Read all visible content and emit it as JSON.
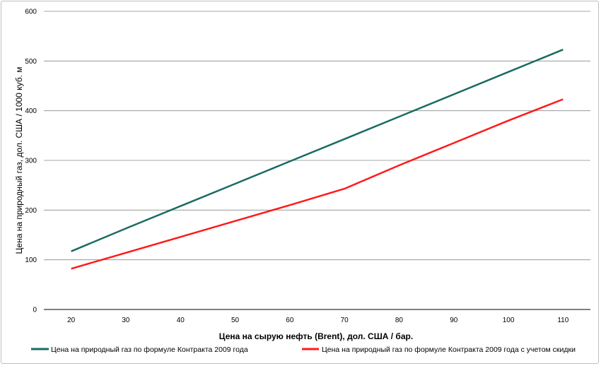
{
  "chart_data": {
    "type": "line",
    "xlabel": "Цена на сырую нефть (Brent), дол. США / бар.",
    "ylabel": "Цена на природный газ, дол. США / 1000 куб. м",
    "x": [
      20,
      30,
      40,
      50,
      60,
      70,
      80,
      90,
      100,
      110
    ],
    "xlim": [
      15,
      115
    ],
    "ylim": [
      0,
      600
    ],
    "yticks": [
      0,
      100,
      200,
      300,
      400,
      500,
      600
    ],
    "grid": true,
    "legend_position": "bottom",
    "series": [
      {
        "name": "Цена на природный газ по формуле Контракта 2009 года",
        "color": "#1a6b63",
        "values": [
          117,
          163,
          208,
          253,
          298,
          343,
          388,
          433,
          478,
          523
        ]
      },
      {
        "name": "Цена на природный газ по формуле Контракта 2009 года с учетом скидки",
        "color": "#ff1a1a",
        "values": [
          82,
          114,
          146,
          178,
          210,
          243,
          290,
          335,
          380,
          423
        ]
      }
    ]
  }
}
